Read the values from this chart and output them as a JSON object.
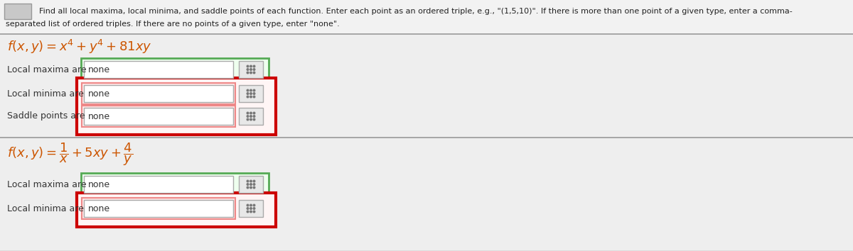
{
  "bg_color": "#eeeeee",
  "white": "#ffffff",
  "red_border": "#cc0000",
  "green_border": "#55aa55",
  "pink_fill": "#ffe8e8",
  "green_fill": "#eeffee",
  "gray_box_color": "#bbbbbb",
  "text_color": "#333333",
  "math_color": "#cc5500",
  "label_color": "#333333",
  "sep_line_color": "#aaaaaa",
  "icon_color": "#777777",
  "input_border_color": "#aaaaaa",
  "input_bg": "#ffffff",
  "instruction_line1": "Find all local maxima, local minima, and saddle points of each function. Enter each point as an ordered triple, e.g., \"(1,5,10)\". If there is more than one point of a given type, enter a comma-",
  "instruction_line2": "separated list of ordered triples. If there are no points of a given type, enter \"none\".",
  "func1": "$f(x, y) = x^4 + y^4 + 81xy$",
  "func2": "$f(x, y) = \\dfrac{1}{x} + 5xy + \\dfrac{4}{y}$",
  "row_labels": [
    "Local maxima are",
    "Local minima are",
    "Saddle points are",
    "Local maxima are",
    "Local minima are"
  ],
  "answer": "none",
  "figsize": [
    12.0,
    3.54
  ],
  "dpi": 100
}
